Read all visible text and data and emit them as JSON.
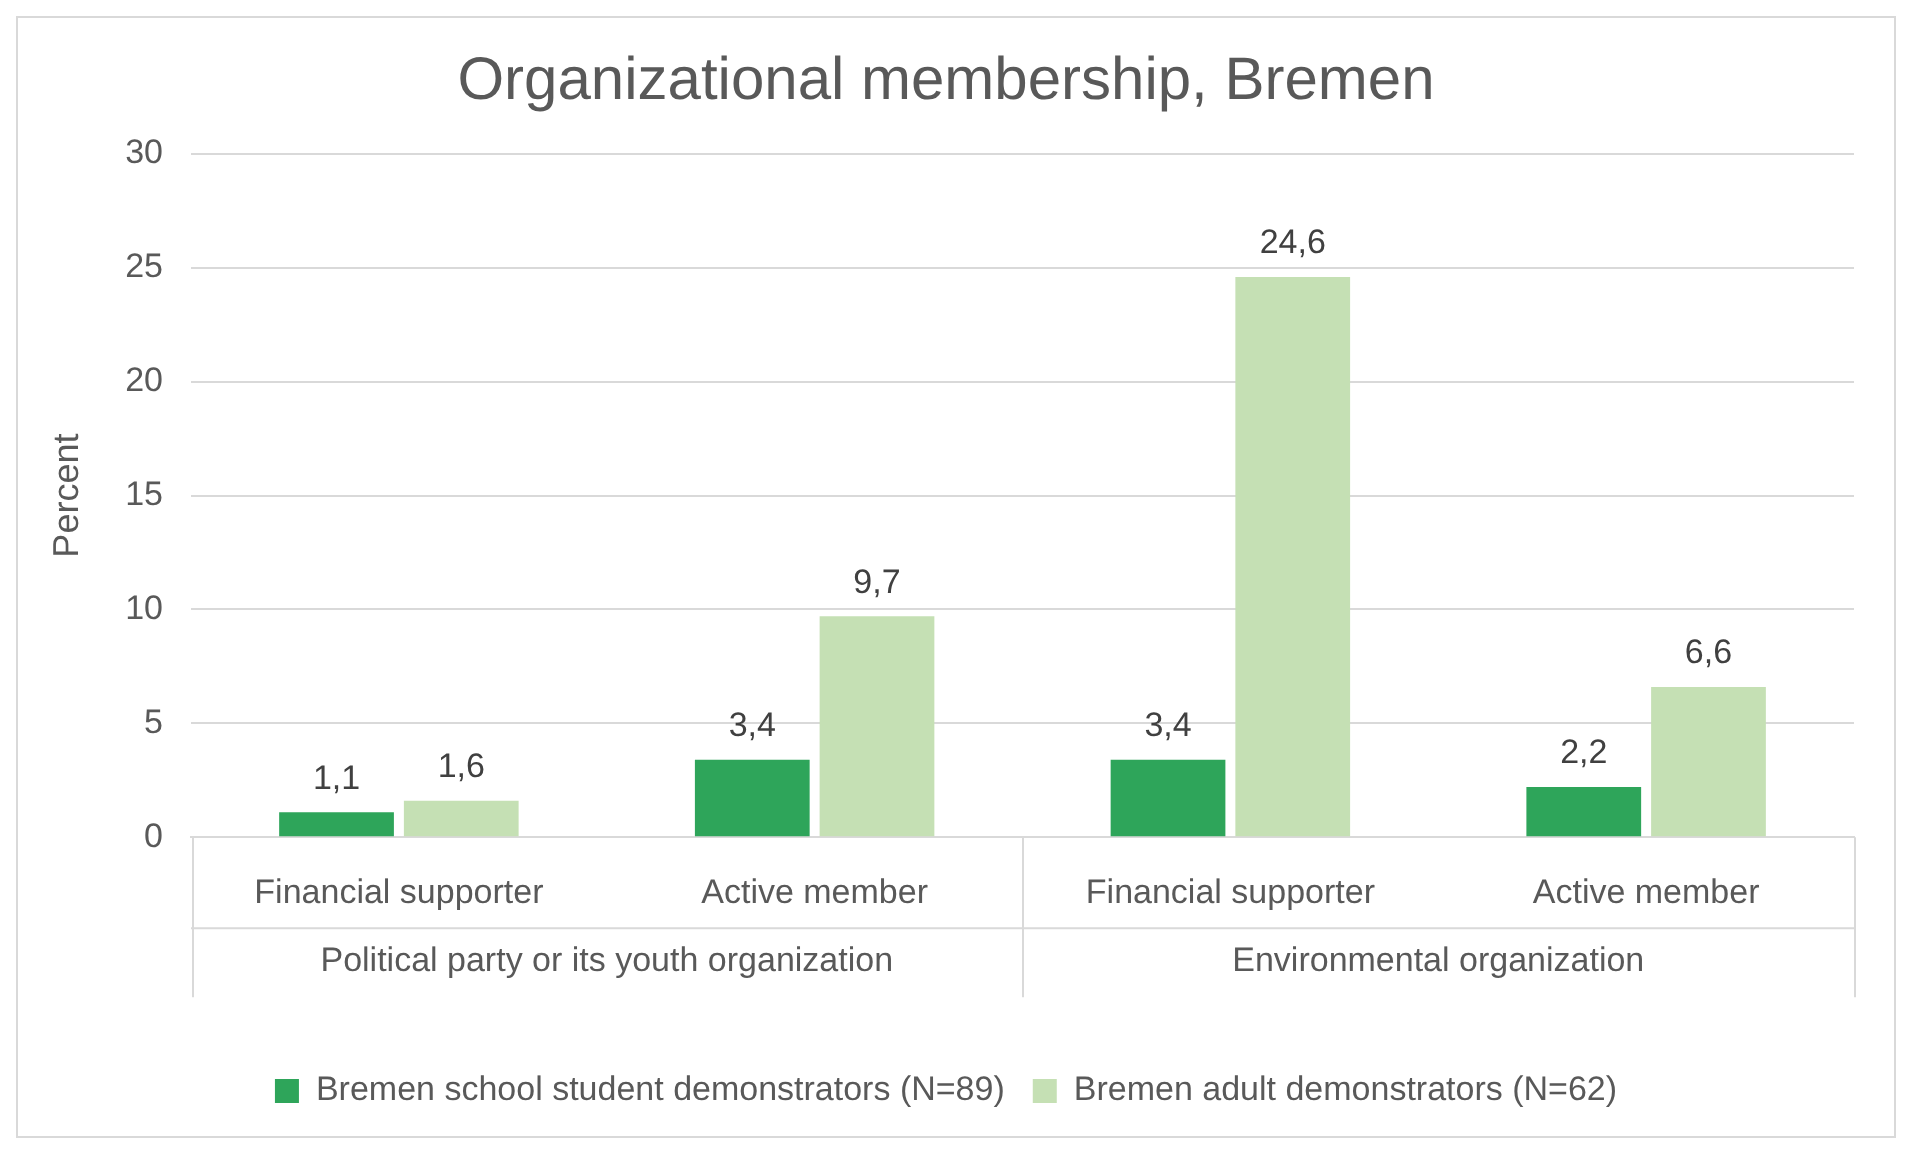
{
  "chart_data": {
    "type": "bar",
    "title": "Organizational membership, Bremen",
    "ylabel": "Percent",
    "categories": [
      "Financial supporter",
      "Active member",
      "Financial supporter",
      "Active member"
    ],
    "annotations": [
      "Political party or its youth organization",
      "Environmental organization"
    ],
    "series": [
      {
        "name": "Bremen school student demonstrators (N=89)",
        "color": "#2ea55a",
        "values": [
          1.1,
          3.4,
          3.4,
          2.2
        ],
        "value_labels": [
          "1,1",
          "3,4",
          "3,4",
          "2,2"
        ]
      },
      {
        "name": "Bremen adult demonstrators (N=62)",
        "color": "#c5e0b4",
        "values": [
          1.6,
          9.7,
          24.6,
          6.6
        ],
        "value_labels": [
          "1,6",
          "9,7",
          "24,6",
          "6,6"
        ]
      }
    ],
    "ylim": [
      0,
      30
    ],
    "yticks": [
      0,
      5,
      10,
      15,
      20,
      25,
      30
    ],
    "grid": "y",
    "legend": "bottom"
  }
}
